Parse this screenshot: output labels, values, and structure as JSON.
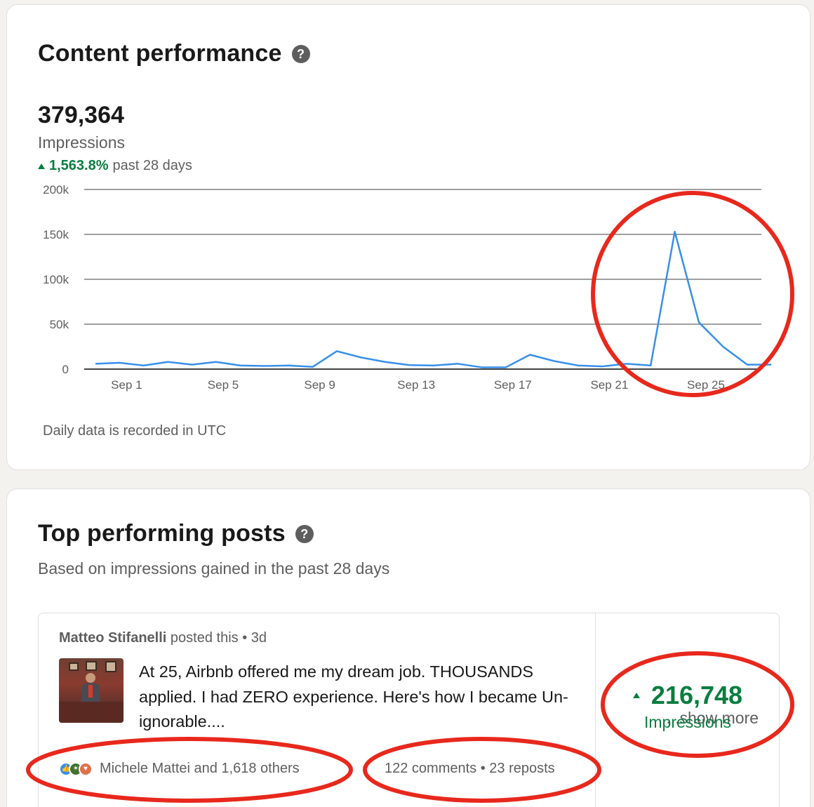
{
  "content_performance": {
    "title": "Content performance",
    "help_icon": "question-circle-icon",
    "total": "379,364",
    "metric": "Impressions",
    "trend_value": "1,563.8%",
    "trend_period": "past 28 days",
    "note": "Daily data is recorded in UTC"
  },
  "chart_data": {
    "type": "line",
    "x": [
      "Aug 31",
      "Sep 1",
      "Sep 2",
      "Sep 3",
      "Sep 4",
      "Sep 5",
      "Sep 6",
      "Sep 7",
      "Sep 8",
      "Sep 9",
      "Sep 10",
      "Sep 11",
      "Sep 12",
      "Sep 13",
      "Sep 14",
      "Sep 15",
      "Sep 16",
      "Sep 17",
      "Sep 18",
      "Sep 19",
      "Sep 20",
      "Sep 21",
      "Sep 22",
      "Sep 23",
      "Sep 24",
      "Sep 25",
      "Sep 26",
      "Sep 27",
      "Sep 28"
    ],
    "values": [
      6000,
      7000,
      4000,
      8000,
      5000,
      8000,
      4000,
      3500,
      4000,
      2500,
      20000,
      13000,
      8000,
      4500,
      4000,
      6000,
      2000,
      2000,
      16000,
      9000,
      4000,
      3000,
      6000,
      4000,
      153000,
      52000,
      25000,
      5000,
      5000
    ],
    "xtick_labels": [
      "Sep 1",
      "Sep 5",
      "Sep 9",
      "Sep 13",
      "Sep 17",
      "Sep 21",
      "Sep 25"
    ],
    "ytick_labels": [
      "200k",
      "150k",
      "100k",
      "50k",
      "0"
    ],
    "ylim": [
      0,
      200000
    ],
    "line_color": "#378fe9",
    "grid": true
  },
  "top_posts": {
    "title": "Top performing posts",
    "help_icon": "question-circle-icon",
    "subtitle": "Based on impressions gained in the past 28 days",
    "post": {
      "author": "Matteo Stifanelli",
      "action": " posted this",
      "separator": " • ",
      "age": "3d",
      "text": "At 25, Airbnb offered me my dream job. THOUSANDS applied. I had ZERO experience. Here's how I became Un-ignorable....",
      "show_more": "...show more",
      "reactions_text": "Michele Mattei and 1,618 others",
      "reaction_icons": [
        "like-icon",
        "celebrate-icon",
        "love-icon"
      ],
      "comments": "122 comments",
      "reposts": "23 reposts",
      "impressions_value": "216,748",
      "impressions_label": "Impressions"
    }
  },
  "colors": {
    "accent_green": "#0a7d3f",
    "annotation_red": "#e8281c",
    "chart_blue": "#378fe9"
  }
}
